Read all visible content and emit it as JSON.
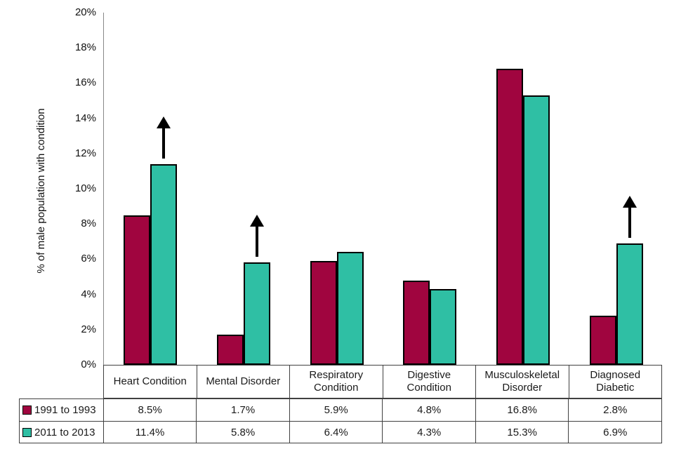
{
  "y_axis": {
    "title": "% of male population with condition",
    "tick_labels": [
      "20%",
      "18%",
      "16%",
      "14%",
      "12%",
      "10%",
      "8%",
      "6%",
      "4%",
      "2%",
      "0%"
    ],
    "max": 20,
    "step": 2
  },
  "colors": {
    "series_1991": "#A0053F",
    "series_2011": "#2FBFA4",
    "bar_outline": "#000000",
    "axis_line": "#898989",
    "table_border": "#404040",
    "arrow": "#000000"
  },
  "chart_data": {
    "type": "bar",
    "title": "",
    "ylabel": "% of male population with condition",
    "xlabel": "",
    "ylim": [
      0,
      20
    ],
    "grid": "off",
    "legend_position": "table-left",
    "categories": [
      "Heart Condition",
      "Mental Disorder",
      "Respiratory Condition",
      "Digestive Condition",
      "Musculoskeletal Disorder",
      "Diagnosed Diabetic"
    ],
    "series": [
      {
        "name": "1991 to 1993",
        "color": "#A0053F",
        "values": [
          8.5,
          1.7,
          5.9,
          4.8,
          16.8,
          2.8
        ],
        "value_labels": [
          "8.5%",
          "1.7%",
          "5.9%",
          "4.8%",
          "16.8%",
          "2.8%"
        ]
      },
      {
        "name": "2011 to 2013",
        "color": "#2FBFA4",
        "values": [
          11.4,
          5.8,
          6.4,
          4.3,
          15.3,
          6.9
        ],
        "value_labels": [
          "11.4%",
          "5.8%",
          "6.4%",
          "4.3%",
          "15.3%",
          "6.9%"
        ]
      }
    ],
    "annotations": {
      "increase_arrow_category_indexes": [
        0,
        1,
        5
      ],
      "arrow_glyph": "up-arrow"
    }
  }
}
